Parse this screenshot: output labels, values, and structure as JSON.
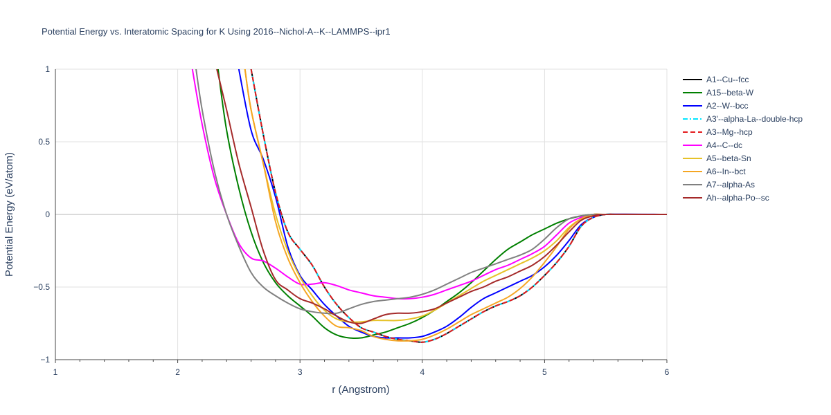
{
  "chart_data": {
    "type": "line",
    "title": "Potential Energy vs. Interatomic Spacing for K Using 2016--Nichol-A--K--LAMMPS--ipr1",
    "xlabel": "r (Angstrom)",
    "ylabel": "Potential Energy (eV/atom)",
    "xlim": [
      1,
      6
    ],
    "ylim": [
      -1,
      1
    ],
    "xticks": [
      1,
      2,
      3,
      4,
      5,
      6
    ],
    "xtick_labels": [
      "1",
      "2",
      "3",
      "4",
      "5",
      "6"
    ],
    "yticks": [
      -1,
      -0.5,
      0,
      0.5,
      1
    ],
    "ytick_labels": [
      "−1",
      "−0.5",
      "0",
      "0.5",
      "1"
    ],
    "grid": true,
    "legend_position": "right",
    "series": [
      {
        "name": "A1--Cu--fcc",
        "color": "#000000",
        "dash": "solid",
        "x": [
          2.6,
          2.7,
          2.8,
          2.9,
          3.0,
          3.1,
          3.2,
          3.3,
          3.4,
          3.5,
          3.6,
          3.7,
          3.8,
          3.9,
          4.0,
          4.1,
          4.2,
          4.3,
          4.4,
          4.5,
          4.6,
          4.7,
          4.8,
          4.9,
          5.0,
          5.1,
          5.2,
          5.3,
          5.4,
          5.5,
          5.6,
          6.0
        ],
        "y": [
          1.0,
          0.55,
          0.15,
          -0.12,
          -0.24,
          -0.35,
          -0.5,
          -0.62,
          -0.71,
          -0.78,
          -0.81,
          -0.84,
          -0.86,
          -0.87,
          -0.88,
          -0.86,
          -0.82,
          -0.77,
          -0.72,
          -0.67,
          -0.63,
          -0.6,
          -0.56,
          -0.5,
          -0.42,
          -0.33,
          -0.22,
          -0.08,
          -0.02,
          0.0,
          0.0,
          0.0
        ]
      },
      {
        "name": "A15--beta-W",
        "color": "#008000",
        "dash": "solid",
        "x": [
          2.33,
          2.4,
          2.5,
          2.6,
          2.7,
          2.8,
          2.9,
          3.0,
          3.1,
          3.2,
          3.3,
          3.4,
          3.5,
          3.6,
          3.7,
          3.8,
          3.9,
          4.0,
          4.1,
          4.2,
          4.3,
          4.4,
          4.5,
          4.6,
          4.7,
          4.8,
          4.9,
          5.0,
          5.1,
          5.2,
          5.3,
          5.4,
          5.5,
          6.0
        ],
        "y": [
          1.0,
          0.58,
          0.18,
          -0.12,
          -0.33,
          -0.47,
          -0.56,
          -0.63,
          -0.7,
          -0.78,
          -0.83,
          -0.85,
          -0.85,
          -0.83,
          -0.81,
          -0.78,
          -0.75,
          -0.71,
          -0.66,
          -0.6,
          -0.54,
          -0.47,
          -0.39,
          -0.31,
          -0.24,
          -0.19,
          -0.14,
          -0.1,
          -0.06,
          -0.03,
          -0.01,
          0.0,
          0.0,
          0.0
        ]
      },
      {
        "name": "A2--W--bcc",
        "color": "#0000ff",
        "dash": "solid",
        "x": [
          2.5,
          2.6,
          2.7,
          2.8,
          2.9,
          3.0,
          3.1,
          3.2,
          3.3,
          3.4,
          3.5,
          3.6,
          3.7,
          3.8,
          3.9,
          4.0,
          4.1,
          4.2,
          4.3,
          4.4,
          4.5,
          4.6,
          4.7,
          4.8,
          4.9,
          5.0,
          5.1,
          5.2,
          5.3,
          5.4,
          5.5,
          6.0
        ],
        "y": [
          1.0,
          0.58,
          0.38,
          0.12,
          -0.22,
          -0.42,
          -0.52,
          -0.62,
          -0.7,
          -0.77,
          -0.81,
          -0.84,
          -0.85,
          -0.85,
          -0.85,
          -0.84,
          -0.81,
          -0.77,
          -0.71,
          -0.64,
          -0.58,
          -0.54,
          -0.5,
          -0.46,
          -0.42,
          -0.36,
          -0.28,
          -0.18,
          -0.07,
          -0.02,
          0.0,
          0.0
        ]
      },
      {
        "name": "A3'--alpha-La--double-hcp",
        "color": "#00e5ff",
        "dash": "dashdot",
        "x": [
          2.6,
          2.7,
          2.8,
          2.9,
          3.0,
          3.1,
          3.2,
          3.3,
          3.4,
          3.5,
          3.6,
          3.7,
          3.8,
          3.9,
          4.0,
          4.1,
          4.2,
          4.3,
          4.4,
          4.5,
          4.6,
          4.7,
          4.8,
          4.9,
          5.0,
          5.1,
          5.2,
          5.3,
          5.4,
          5.5,
          5.6,
          6.0
        ],
        "y": [
          1.0,
          0.55,
          0.15,
          -0.12,
          -0.24,
          -0.35,
          -0.5,
          -0.62,
          -0.71,
          -0.78,
          -0.81,
          -0.84,
          -0.86,
          -0.87,
          -0.88,
          -0.86,
          -0.82,
          -0.77,
          -0.72,
          -0.67,
          -0.63,
          -0.6,
          -0.56,
          -0.5,
          -0.42,
          -0.33,
          -0.22,
          -0.08,
          -0.02,
          0.0,
          0.0,
          0.0
        ]
      },
      {
        "name": "A3--Mg--hcp",
        "color": "#e31a1c",
        "dash": "dash",
        "x": [
          2.6,
          2.7,
          2.8,
          2.9,
          3.0,
          3.1,
          3.2,
          3.3,
          3.4,
          3.5,
          3.6,
          3.7,
          3.8,
          3.9,
          4.0,
          4.1,
          4.2,
          4.3,
          4.4,
          4.5,
          4.6,
          4.7,
          4.8,
          4.9,
          5.0,
          5.1,
          5.2,
          5.3,
          5.4,
          5.5,
          5.6,
          6.0
        ],
        "y": [
          1.0,
          0.55,
          0.15,
          -0.12,
          -0.24,
          -0.35,
          -0.5,
          -0.62,
          -0.71,
          -0.78,
          -0.81,
          -0.84,
          -0.86,
          -0.87,
          -0.88,
          -0.86,
          -0.82,
          -0.77,
          -0.72,
          -0.67,
          -0.63,
          -0.6,
          -0.56,
          -0.5,
          -0.42,
          -0.33,
          -0.22,
          -0.08,
          -0.02,
          0.0,
          0.0,
          0.0
        ]
      },
      {
        "name": "A4--C--dc",
        "color": "#ff00ff",
        "dash": "solid",
        "x": [
          2.12,
          2.2,
          2.3,
          2.4,
          2.5,
          2.6,
          2.7,
          2.8,
          2.9,
          3.0,
          3.1,
          3.2,
          3.3,
          3.4,
          3.5,
          3.6,
          3.7,
          3.8,
          3.9,
          4.0,
          4.1,
          4.2,
          4.3,
          4.4,
          4.5,
          4.6,
          4.7,
          4.8,
          4.9,
          5.0,
          5.1,
          5.2,
          5.3,
          5.4,
          5.5,
          6.0
        ],
        "y": [
          1.0,
          0.62,
          0.25,
          0.0,
          -0.2,
          -0.3,
          -0.32,
          -0.37,
          -0.43,
          -0.48,
          -0.48,
          -0.47,
          -0.49,
          -0.52,
          -0.54,
          -0.56,
          -0.57,
          -0.58,
          -0.58,
          -0.57,
          -0.55,
          -0.52,
          -0.49,
          -0.46,
          -0.42,
          -0.38,
          -0.35,
          -0.31,
          -0.27,
          -0.22,
          -0.14,
          -0.06,
          -0.02,
          0.0,
          0.0,
          0.0
        ]
      },
      {
        "name": "A5--beta-Sn",
        "color": "#e6c229",
        "dash": "solid",
        "x": [
          2.55,
          2.6,
          2.7,
          2.8,
          2.9,
          3.0,
          3.1,
          3.2,
          3.3,
          3.4,
          3.5,
          3.6,
          3.7,
          3.8,
          3.9,
          4.0,
          4.1,
          4.2,
          4.3,
          4.4,
          4.5,
          4.6,
          4.7,
          4.8,
          4.9,
          5.0,
          5.1,
          5.2,
          5.3,
          5.4,
          5.5,
          6.0
        ],
        "y": [
          1.0,
          0.72,
          0.35,
          0.0,
          -0.25,
          -0.43,
          -0.56,
          -0.66,
          -0.72,
          -0.74,
          -0.74,
          -0.73,
          -0.73,
          -0.73,
          -0.72,
          -0.7,
          -0.66,
          -0.61,
          -0.56,
          -0.51,
          -0.46,
          -0.42,
          -0.38,
          -0.34,
          -0.3,
          -0.25,
          -0.18,
          -0.09,
          -0.03,
          0.0,
          0.0,
          0.0
        ]
      },
      {
        "name": "A6--In--bct",
        "color": "#f5a623",
        "dash": "solid",
        "x": [
          2.55,
          2.6,
          2.7,
          2.8,
          2.9,
          3.0,
          3.1,
          3.2,
          3.3,
          3.4,
          3.5,
          3.6,
          3.7,
          3.8,
          3.9,
          4.0,
          4.1,
          4.2,
          4.3,
          4.4,
          4.5,
          4.6,
          4.7,
          4.8,
          4.9,
          5.0,
          5.1,
          5.2,
          5.3,
          5.4,
          5.5,
          6.0
        ],
        "y": [
          1.0,
          0.72,
          0.35,
          -0.05,
          -0.3,
          -0.47,
          -0.6,
          -0.7,
          -0.77,
          -0.78,
          -0.8,
          -0.84,
          -0.86,
          -0.87,
          -0.87,
          -0.86,
          -0.83,
          -0.79,
          -0.74,
          -0.69,
          -0.65,
          -0.61,
          -0.57,
          -0.51,
          -0.43,
          -0.33,
          -0.22,
          -0.1,
          -0.03,
          0.0,
          0.0,
          0.0
        ]
      },
      {
        "name": "A7--alpha-As",
        "color": "#808080",
        "dash": "solid",
        "x": [
          2.15,
          2.2,
          2.3,
          2.4,
          2.5,
          2.6,
          2.7,
          2.8,
          2.9,
          3.0,
          3.1,
          3.2,
          3.3,
          3.4,
          3.5,
          3.6,
          3.7,
          3.8,
          3.9,
          4.0,
          4.1,
          4.2,
          4.3,
          4.4,
          4.5,
          4.6,
          4.7,
          4.8,
          4.9,
          5.0,
          5.1,
          5.2,
          5.3,
          5.4,
          5.5,
          6.0
        ],
        "y": [
          1.0,
          0.72,
          0.3,
          0.0,
          -0.22,
          -0.4,
          -0.5,
          -0.56,
          -0.61,
          -0.65,
          -0.67,
          -0.68,
          -0.68,
          -0.65,
          -0.62,
          -0.6,
          -0.59,
          -0.58,
          -0.57,
          -0.55,
          -0.52,
          -0.48,
          -0.44,
          -0.4,
          -0.37,
          -0.34,
          -0.31,
          -0.28,
          -0.24,
          -0.17,
          -0.09,
          -0.03,
          -0.01,
          0.0,
          0.0,
          0.0
        ]
      },
      {
        "name": "Ah--alpha-Po--sc",
        "color": "#a52a2a",
        "dash": "solid",
        "x": [
          2.32,
          2.4,
          2.5,
          2.6,
          2.7,
          2.8,
          2.9,
          3.0,
          3.1,
          3.2,
          3.3,
          3.4,
          3.5,
          3.6,
          3.7,
          3.8,
          3.9,
          4.0,
          4.1,
          4.2,
          4.3,
          4.4,
          4.5,
          4.6,
          4.7,
          4.8,
          4.9,
          5.0,
          5.1,
          5.2,
          5.3,
          5.4,
          5.5,
          6.0
        ],
        "y": [
          1.0,
          0.72,
          0.35,
          0.05,
          -0.25,
          -0.45,
          -0.52,
          -0.58,
          -0.61,
          -0.65,
          -0.7,
          -0.74,
          -0.75,
          -0.72,
          -0.69,
          -0.68,
          -0.68,
          -0.67,
          -0.65,
          -0.61,
          -0.57,
          -0.53,
          -0.5,
          -0.46,
          -0.43,
          -0.39,
          -0.35,
          -0.29,
          -0.21,
          -0.12,
          -0.04,
          -0.01,
          0.0,
          0.0
        ]
      }
    ]
  }
}
